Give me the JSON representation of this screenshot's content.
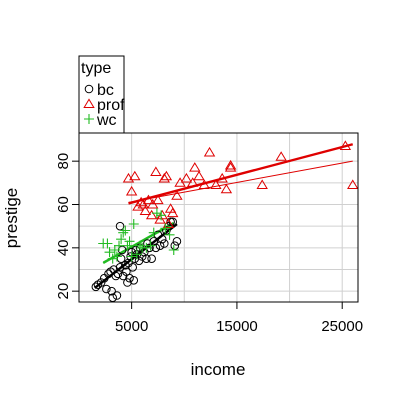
{
  "chart_data": {
    "type": "scatter",
    "xlabel": "income",
    "ylabel": "prestige",
    "xlim": [
      0,
      26500
    ],
    "ylim": [
      15,
      93
    ],
    "x_ticks": [
      5000,
      15000,
      25000
    ],
    "x_tick_labels": [
      "5000",
      "15000",
      "25000"
    ],
    "y_ticks": [
      20,
      40,
      60,
      80
    ],
    "y_tick_labels": [
      "20",
      "40",
      "60",
      "80"
    ],
    "grid": true,
    "legend": {
      "title": "type",
      "placement": "top-left, above plot",
      "entries": [
        {
          "label": "bc",
          "marker": "circle",
          "color": "#000000"
        },
        {
          "label": "prof",
          "marker": "triangle",
          "color": "#df0000"
        },
        {
          "label": "wc",
          "marker": "plus",
          "color": "#22bb22"
        }
      ]
    },
    "series": [
      {
        "name": "bc",
        "marker": "circle",
        "color": "#000000",
        "points": [
          [
            1600,
            22
          ],
          [
            1800,
            23
          ],
          [
            2100,
            24
          ],
          [
            2400,
            26
          ],
          [
            2600,
            21
          ],
          [
            2800,
            28
          ],
          [
            3000,
            29
          ],
          [
            3100,
            20
          ],
          [
            3200,
            17
          ],
          [
            3300,
            30
          ],
          [
            3500,
            27
          ],
          [
            3600,
            18
          ],
          [
            3700,
            28
          ],
          [
            3900,
            31
          ],
          [
            4000,
            35
          ],
          [
            4100,
            39
          ],
          [
            4200,
            27
          ],
          [
            4400,
            32
          ],
          [
            4500,
            29
          ],
          [
            4600,
            24
          ],
          [
            4700,
            33
          ],
          [
            4800,
            26
          ],
          [
            4900,
            36
          ],
          [
            5000,
            38
          ],
          [
            5100,
            31
          ],
          [
            5200,
            25
          ],
          [
            5300,
            35
          ],
          [
            5400,
            39
          ],
          [
            5500,
            37
          ],
          [
            5700,
            34
          ],
          [
            5800,
            40
          ],
          [
            6000,
            36
          ],
          [
            6200,
            38
          ],
          [
            6400,
            35
          ],
          [
            6500,
            42
          ],
          [
            6700,
            40
          ],
          [
            6900,
            35
          ],
          [
            7100,
            43
          ],
          [
            7300,
            40
          ],
          [
            7500,
            46
          ],
          [
            7700,
            41
          ],
          [
            7900,
            44
          ],
          [
            8100,
            42
          ],
          [
            8300,
            48
          ],
          [
            8500,
            50
          ],
          [
            8700,
            52
          ],
          [
            8900,
            52
          ],
          [
            9100,
            41
          ],
          [
            9300,
            43
          ],
          [
            3900,
            50
          ]
        ]
      },
      {
        "name": "prof",
        "marker": "triangle",
        "color": "#df0000",
        "points": [
          [
            4700,
            72
          ],
          [
            5000,
            66
          ],
          [
            5300,
            73
          ],
          [
            5600,
            59
          ],
          [
            5900,
            61
          ],
          [
            6100,
            60
          ],
          [
            6300,
            57
          ],
          [
            6600,
            62
          ],
          [
            6900,
            55
          ],
          [
            7000,
            60
          ],
          [
            7300,
            75
          ],
          [
            7500,
            62
          ],
          [
            7700,
            53
          ],
          [
            7900,
            55
          ],
          [
            8100,
            72
          ],
          [
            8300,
            73
          ],
          [
            8500,
            51
          ],
          [
            8700,
            58
          ],
          [
            8900,
            56
          ],
          [
            9300,
            64
          ],
          [
            9600,
            70
          ],
          [
            10200,
            72
          ],
          [
            10800,
            70
          ],
          [
            11000,
            77
          ],
          [
            11400,
            73
          ],
          [
            11900,
            69
          ],
          [
            12400,
            84
          ],
          [
            13000,
            69
          ],
          [
            13600,
            72
          ],
          [
            14000,
            67
          ],
          [
            14400,
            77
          ],
          [
            14400,
            78
          ],
          [
            17400,
            69
          ],
          [
            19200,
            82
          ],
          [
            25300,
            87
          ],
          [
            26000,
            69
          ]
        ]
      },
      {
        "name": "wc",
        "marker": "plus",
        "color": "#22bb22",
        "points": [
          [
            2300,
            42
          ],
          [
            2700,
            42
          ],
          [
            2900,
            38
          ],
          [
            3200,
            35
          ],
          [
            3400,
            39
          ],
          [
            3600,
            36
          ],
          [
            3800,
            41
          ],
          [
            4000,
            44
          ],
          [
            4200,
            47
          ],
          [
            4400,
            48
          ],
          [
            4600,
            41
          ],
          [
            4800,
            43
          ],
          [
            5000,
            36
          ],
          [
            5200,
            51
          ],
          [
            5500,
            37
          ],
          [
            5800,
            41
          ],
          [
            6000,
            40
          ],
          [
            6400,
            40
          ],
          [
            6800,
            41
          ],
          [
            7100,
            47
          ],
          [
            7400,
            56
          ],
          [
            7800,
            55
          ],
          [
            8200,
            49
          ],
          [
            8600,
            46
          ],
          [
            9000,
            39
          ]
        ]
      }
    ],
    "fit_lines": [
      {
        "series": "bc",
        "color": "#000000",
        "style": "thick",
        "x": [
          1500,
          9300
        ],
        "y": [
          21.5,
          51.0
        ]
      },
      {
        "series": "bc",
        "color": "#000000",
        "style": "thin",
        "x": [
          1500,
          9300
        ],
        "y": [
          21.8,
          50.6
        ]
      },
      {
        "series": "prof",
        "color": "#df0000",
        "style": "thick",
        "x": [
          4700,
          26000
        ],
        "y": [
          60.5,
          87.8
        ]
      },
      {
        "series": "prof",
        "color": "#df0000",
        "style": "thin",
        "x": [
          4700,
          26000
        ],
        "y": [
          61.0,
          80.0
        ]
      },
      {
        "series": "wc",
        "color": "#22bb22",
        "style": "thick",
        "x": [
          2300,
          9000
        ],
        "y": [
          33.0,
          51.5
        ]
      },
      {
        "series": "wc",
        "color": "#22bb22",
        "style": "thin",
        "x": [
          2300,
          9000
        ],
        "y": [
          33.5,
          50.8
        ]
      }
    ]
  }
}
